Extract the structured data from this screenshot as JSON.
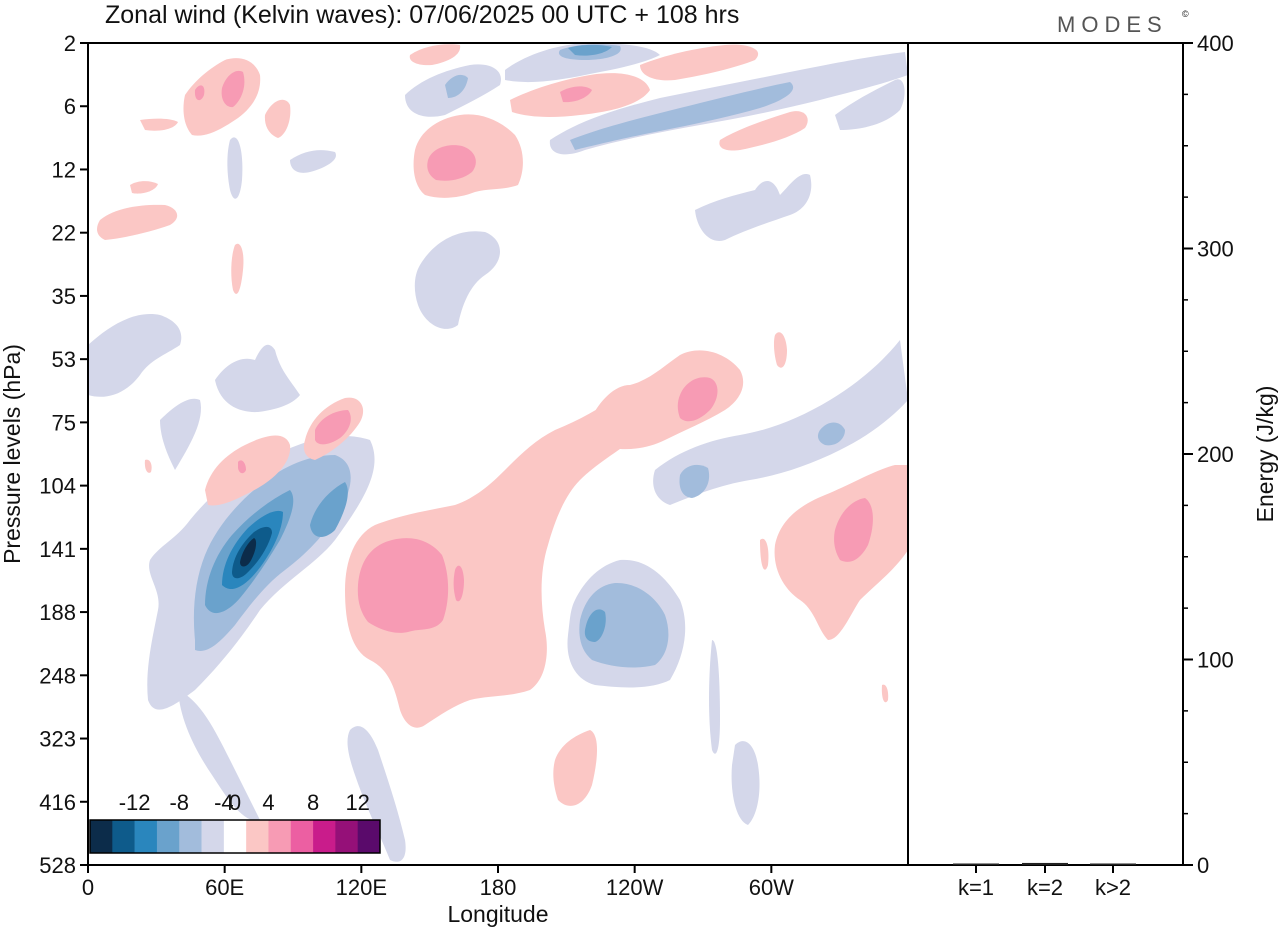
{
  "header": {
    "title": "Zonal wind (Kelvin waves):  07/06/2025  00 UTC  + 108 hrs",
    "logo": "MODES",
    "logo_mark": "©"
  },
  "chart_data": [
    {
      "type": "heatmap",
      "title": "Zonal wind (Kelvin waves):  07/06/2025  00 UTC  + 108 hrs",
      "xlabel": "Longitude",
      "ylabel": "Pressure levels (hPa)",
      "x_ticks": [
        "0",
        "60E",
        "120E",
        "180",
        "120W",
        "60W"
      ],
      "x_tick_degrees": [
        0,
        60,
        120,
        180,
        240,
        300
      ],
      "xlim": [
        0,
        360
      ],
      "y_ticks": [
        "2",
        "6",
        "12",
        "22",
        "35",
        "53",
        "75",
        "104",
        "141",
        "188",
        "248",
        "323",
        "416",
        "528"
      ],
      "colorbar": {
        "tick_labels": [
          "-12",
          "-8",
          "-4",
          "0",
          "4",
          "8",
          "12"
        ],
        "levels": [
          -14,
          -12,
          -10,
          -8,
          -6,
          -4,
          -2,
          2,
          4,
          6,
          8,
          10,
          12,
          14
        ],
        "colors": [
          "#0c2c4a",
          "#0e5b8b",
          "#2a86bd",
          "#6aa2cc",
          "#a2bcdc",
          "#d4d7ea",
          "#ffffff",
          "#fbc7c5",
          "#f79bb4",
          "#ec5fa2",
          "#c91c8b",
          "#951078",
          "#5a0a6b"
        ]
      },
      "features": [
        {
          "sign": "negative",
          "lon": 68,
          "level": "141",
          "peak": -12
        },
        {
          "sign": "negative",
          "lon": 103,
          "level": "104",
          "peak": -6
        },
        {
          "sign": "negative",
          "lon": 222,
          "level": "188",
          "peak": -6
        },
        {
          "sign": "negative",
          "lon": 265,
          "level": "104",
          "peak": -4
        },
        {
          "sign": "negative",
          "lon": 328,
          "level": "75",
          "peak": -4
        },
        {
          "sign": "negative",
          "lon": 220,
          "level": "2",
          "peak": -6
        },
        {
          "sign": "negative",
          "lon": 240,
          "level": "6",
          "peak": -4
        },
        {
          "sign": "positive",
          "lon": 145,
          "level": "141",
          "peak": 6
        },
        {
          "sign": "positive",
          "lon": 161,
          "level": "12",
          "peak": 6
        },
        {
          "sign": "positive",
          "lon": 276,
          "level": "53",
          "peak": 6
        },
        {
          "sign": "positive",
          "lon": 330,
          "level": "141",
          "peak": 6
        },
        {
          "sign": "positive",
          "lon": 95,
          "level": "75",
          "peak": 6
        },
        {
          "sign": "positive",
          "lon": 63,
          "level": "6",
          "peak": 6
        }
      ]
    },
    {
      "type": "bar",
      "ylabel": "Energy (J/kg)",
      "categories": [
        "k=1",
        "k=2",
        "k>2"
      ],
      "values": [
        0.5,
        1,
        0.5
      ],
      "ylim": [
        0,
        400
      ],
      "y_ticks": [
        "0",
        "100",
        "200",
        "300",
        "400"
      ]
    }
  ]
}
